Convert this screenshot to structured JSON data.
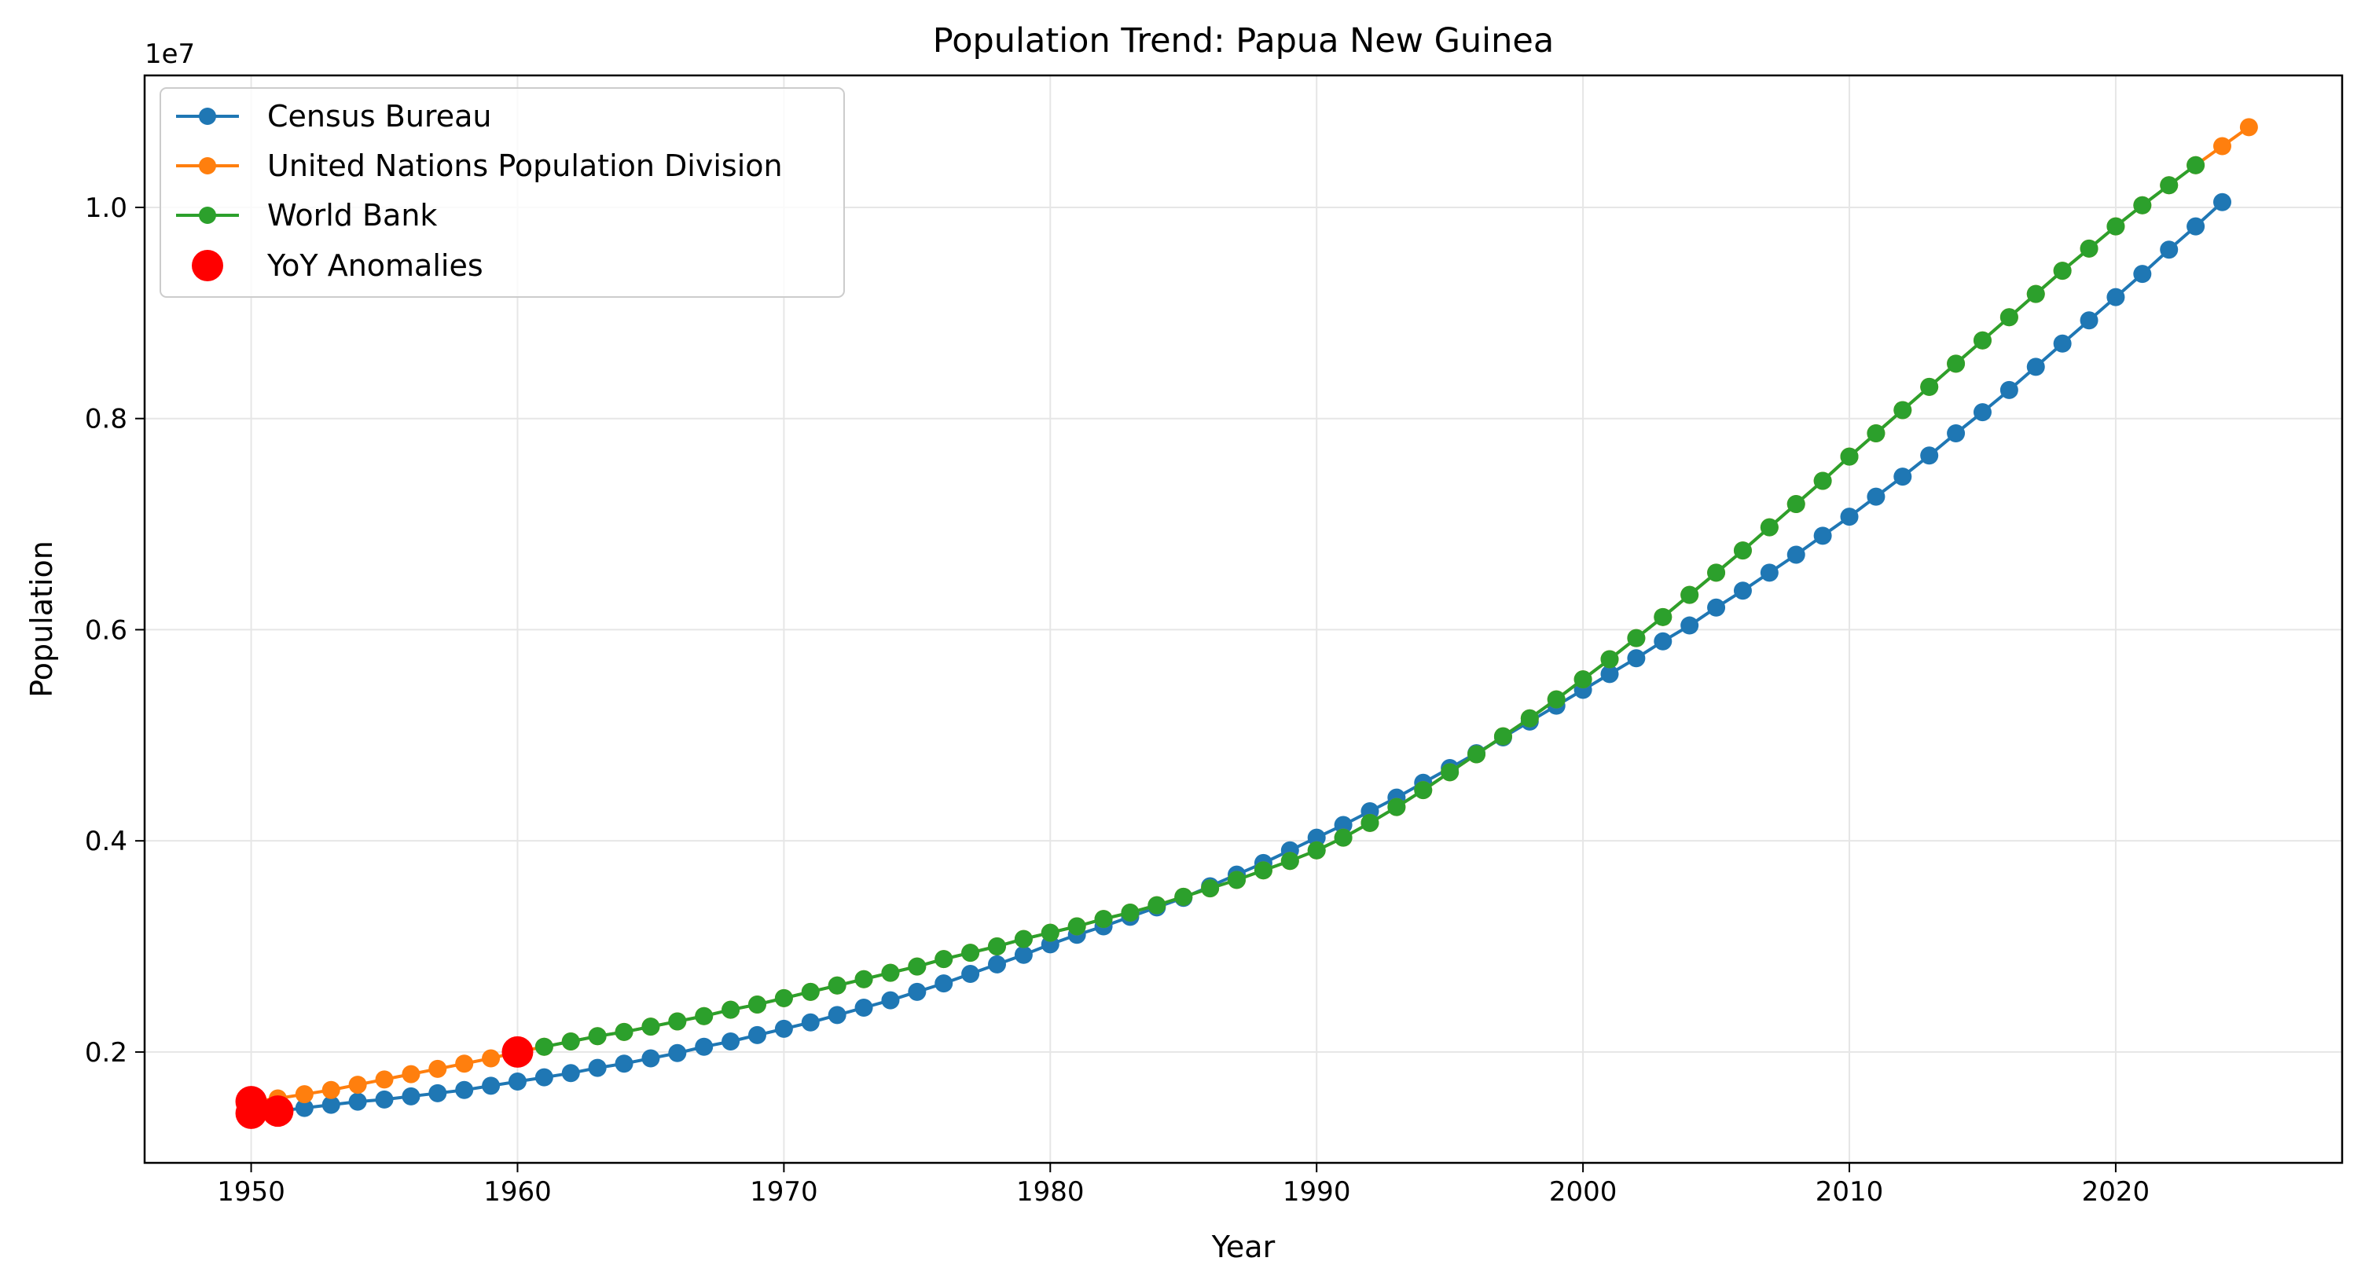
{
  "chart_data": {
    "type": "line",
    "title": "Population Trend: Papua New Guinea",
    "xlabel": "Year",
    "ylabel": "Population",
    "y_offset_text": "1e7",
    "xlim": [
      1946,
      2028.5
    ],
    "ylim": [
      0.095,
      1.125
    ],
    "y_scale_note": "values in units of 1e7",
    "x_ticks": [
      1950,
      1960,
      1970,
      1980,
      1990,
      2000,
      2010,
      2020
    ],
    "x_tick_labels": [
      "1950",
      "1960",
      "1970",
      "1980",
      "1990",
      "2000",
      "2010",
      "2020"
    ],
    "y_ticks": [
      0.2,
      0.4,
      0.6,
      0.8,
      1.0
    ],
    "y_tick_labels": [
      "0.2",
      "0.4",
      "0.6",
      "0.8",
      "1.0"
    ],
    "grid": true,
    "legend_position": "top-left",
    "series": [
      {
        "name": "Census Bureau",
        "color": "#1f77b4",
        "marker": "circle",
        "x": [
          1950,
          1951,
          1952,
          1953,
          1954,
          1955,
          1956,
          1957,
          1958,
          1959,
          1960,
          1961,
          1962,
          1963,
          1964,
          1965,
          1966,
          1967,
          1968,
          1969,
          1970,
          1971,
          1972,
          1973,
          1974,
          1975,
          1976,
          1977,
          1978,
          1979,
          1980,
          1981,
          1982,
          1983,
          1984,
          1985,
          1986,
          1987,
          1988,
          1989,
          1990,
          1991,
          1992,
          1993,
          1994,
          1995,
          1996,
          1997,
          1998,
          1999,
          2000,
          2001,
          2002,
          2003,
          2004,
          2005,
          2006,
          2007,
          2008,
          2009,
          2010,
          2011,
          2012,
          2013,
          2014,
          2015,
          2016,
          2017,
          2018,
          2019,
          2020,
          2021,
          2022,
          2023,
          2024
        ],
        "values": [
          0.142,
          0.144,
          0.147,
          0.15,
          0.153,
          0.155,
          0.158,
          0.161,
          0.164,
          0.168,
          0.172,
          0.176,
          0.18,
          0.185,
          0.189,
          0.194,
          0.199,
          0.205,
          0.21,
          0.216,
          0.222,
          0.228,
          0.235,
          0.242,
          0.249,
          0.257,
          0.265,
          0.274,
          0.283,
          0.292,
          0.302,
          0.311,
          0.319,
          0.328,
          0.337,
          0.346,
          0.357,
          0.368,
          0.379,
          0.391,
          0.403,
          0.415,
          0.428,
          0.441,
          0.455,
          0.469,
          0.483,
          0.498,
          0.513,
          0.528,
          0.543,
          0.558,
          0.573,
          0.589,
          0.604,
          0.621,
          0.637,
          0.654,
          0.671,
          0.689,
          0.707,
          0.726,
          0.745,
          0.765,
          0.786,
          0.806,
          0.827,
          0.849,
          0.871,
          0.893,
          0.915,
          0.937,
          0.96,
          0.982,
          1.005
        ]
      },
      {
        "name": "United Nations Population Division",
        "color": "#ff7f0e",
        "marker": "circle",
        "x": [
          1950,
          1951,
          1952,
          1953,
          1954,
          1955,
          1956,
          1957,
          1958,
          1959,
          1960,
          1961,
          1962,
          1963,
          1964,
          1965,
          1966,
          1967,
          1968,
          1969,
          1970,
          1971,
          1972,
          1973,
          1974,
          1975,
          1976,
          1977,
          1978,
          1979,
          1980,
          1981,
          1982,
          1983,
          1984,
          1985,
          1986,
          1987,
          1988,
          1989,
          1990,
          1991,
          1992,
          1993,
          1994,
          1995,
          1996,
          1997,
          1998,
          1999,
          2000,
          2001,
          2002,
          2003,
          2004,
          2005,
          2006,
          2007,
          2008,
          2009,
          2010,
          2011,
          2012,
          2013,
          2014,
          2015,
          2016,
          2017,
          2018,
          2019,
          2020,
          2021,
          2022,
          2023,
          2024,
          2025
        ],
        "values": [
          0.153,
          0.156,
          0.16,
          0.164,
          0.169,
          0.174,
          0.179,
          0.184,
          0.189,
          0.194,
          0.2,
          0.205,
          0.21,
          0.215,
          0.219,
          0.224,
          0.229,
          0.234,
          0.24,
          0.245,
          0.251,
          0.257,
          0.263,
          0.269,
          0.275,
          0.281,
          0.288,
          0.294,
          0.3,
          0.307,
          0.313,
          0.319,
          0.326,
          0.332,
          0.339,
          0.347,
          0.355,
          0.363,
          0.372,
          0.381,
          0.391,
          0.403,
          0.417,
          0.432,
          0.448,
          0.465,
          0.482,
          0.499,
          0.516,
          0.534,
          0.553,
          0.572,
          0.592,
          0.612,
          0.633,
          0.654,
          0.675,
          0.697,
          0.719,
          0.741,
          0.764,
          0.786,
          0.808,
          0.83,
          0.852,
          0.874,
          0.896,
          0.918,
          0.94,
          0.961,
          0.982,
          1.002,
          1.021,
          1.04,
          1.058,
          1.076
        ]
      },
      {
        "name": "World Bank",
        "color": "#2ca02c",
        "marker": "circle",
        "x": [
          1961,
          1962,
          1963,
          1964,
          1965,
          1966,
          1967,
          1968,
          1969,
          1970,
          1971,
          1972,
          1973,
          1974,
          1975,
          1976,
          1977,
          1978,
          1979,
          1980,
          1981,
          1982,
          1983,
          1984,
          1985,
          1986,
          1987,
          1988,
          1989,
          1990,
          1991,
          1992,
          1993,
          1994,
          1995,
          1996,
          1997,
          1998,
          1999,
          2000,
          2001,
          2002,
          2003,
          2004,
          2005,
          2006,
          2007,
          2008,
          2009,
          2010,
          2011,
          2012,
          2013,
          2014,
          2015,
          2016,
          2017,
          2018,
          2019,
          2020,
          2021,
          2022,
          2023
        ],
        "values": [
          0.205,
          0.21,
          0.215,
          0.219,
          0.224,
          0.229,
          0.234,
          0.24,
          0.245,
          0.251,
          0.257,
          0.263,
          0.269,
          0.275,
          0.281,
          0.288,
          0.294,
          0.3,
          0.307,
          0.313,
          0.319,
          0.326,
          0.332,
          0.339,
          0.347,
          0.355,
          0.363,
          0.372,
          0.381,
          0.391,
          0.403,
          0.417,
          0.432,
          0.448,
          0.465,
          0.482,
          0.499,
          0.516,
          0.534,
          0.553,
          0.572,
          0.592,
          0.612,
          0.633,
          0.654,
          0.675,
          0.697,
          0.719,
          0.741,
          0.764,
          0.786,
          0.808,
          0.83,
          0.852,
          0.874,
          0.896,
          0.918,
          0.94,
          0.961,
          0.982,
          1.002,
          1.021,
          1.04
        ]
      }
    ],
    "anomalies": {
      "name": "YoY Anomalies",
      "color": "#ff0000",
      "marker": "circle",
      "points": [
        {
          "x": 1950,
          "y": 0.153
        },
        {
          "x": 1950,
          "y": 0.142
        },
        {
          "x": 1951,
          "y": 0.144
        },
        {
          "x": 1960,
          "y": 0.2
        }
      ]
    }
  }
}
